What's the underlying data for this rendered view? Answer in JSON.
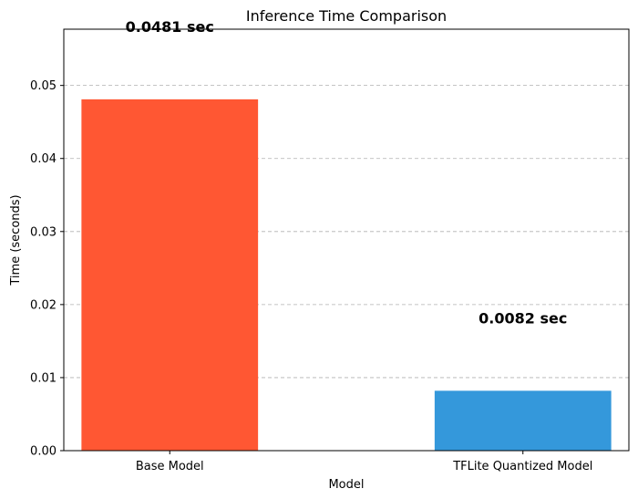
{
  "chart_data": {
    "type": "bar",
    "title": "Inference Time Comparison",
    "xlabel": "Model",
    "ylabel": "Time (seconds)",
    "categories": [
      "Base Model",
      "TFLite Quantized Model"
    ],
    "values": [
      0.0481,
      0.0082
    ],
    "data_labels": [
      "0.0481 sec",
      "0.0082 sec"
    ],
    "colors": [
      "#ff5733",
      "#3498db"
    ],
    "ylim": [
      0,
      0.0577
    ],
    "yticks": [
      0.0,
      0.01,
      0.02,
      0.03,
      0.04,
      0.05
    ],
    "ytick_labels": [
      "0.00",
      "0.01",
      "0.02",
      "0.03",
      "0.04",
      "0.05"
    ],
    "grid": "y-dashed",
    "data_label_offset": 0.01
  }
}
